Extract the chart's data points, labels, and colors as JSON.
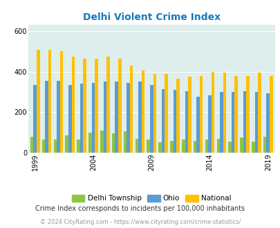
{
  "title": "Delhi Violent Crime Index",
  "subtitle": "Crime Index corresponds to incidents per 100,000 inhabitants",
  "footer": "© 2024 CityRating.com - https://www.cityrating.com/crime-statistics/",
  "years": [
    1999,
    2000,
    2001,
    2002,
    2003,
    2004,
    2005,
    2006,
    2007,
    2008,
    2009,
    2010,
    2011,
    2012,
    2013,
    2014,
    2015,
    2016,
    2017,
    2018,
    2019
  ],
  "delhi": [
    80,
    65,
    65,
    85,
    65,
    100,
    110,
    95,
    105,
    70,
    65,
    50,
    60,
    65,
    60,
    65,
    70,
    55,
    75,
    55,
    80
  ],
  "ohio": [
    335,
    355,
    355,
    335,
    340,
    345,
    350,
    350,
    345,
    350,
    335,
    315,
    310,
    305,
    275,
    285,
    300,
    300,
    305,
    300,
    295
  ],
  "national": [
    510,
    510,
    500,
    475,
    465,
    465,
    475,
    465,
    430,
    405,
    390,
    390,
    365,
    375,
    380,
    400,
    395,
    380,
    380,
    395,
    380
  ],
  "delhi_color": "#8dc63f",
  "ohio_color": "#5b9bd5",
  "national_color": "#ffc000",
  "bg_color": "#deeeed",
  "title_color": "#1a7abf",
  "grid_color": "#ffffff",
  "ylim": [
    0,
    630
  ],
  "yticks": [
    0,
    200,
    400,
    600
  ],
  "xlabel_ticks": [
    1999,
    2004,
    2009,
    2014,
    2019
  ],
  "bar_width": 0.27,
  "figsize": [
    4.06,
    3.3
  ],
  "dpi": 100
}
